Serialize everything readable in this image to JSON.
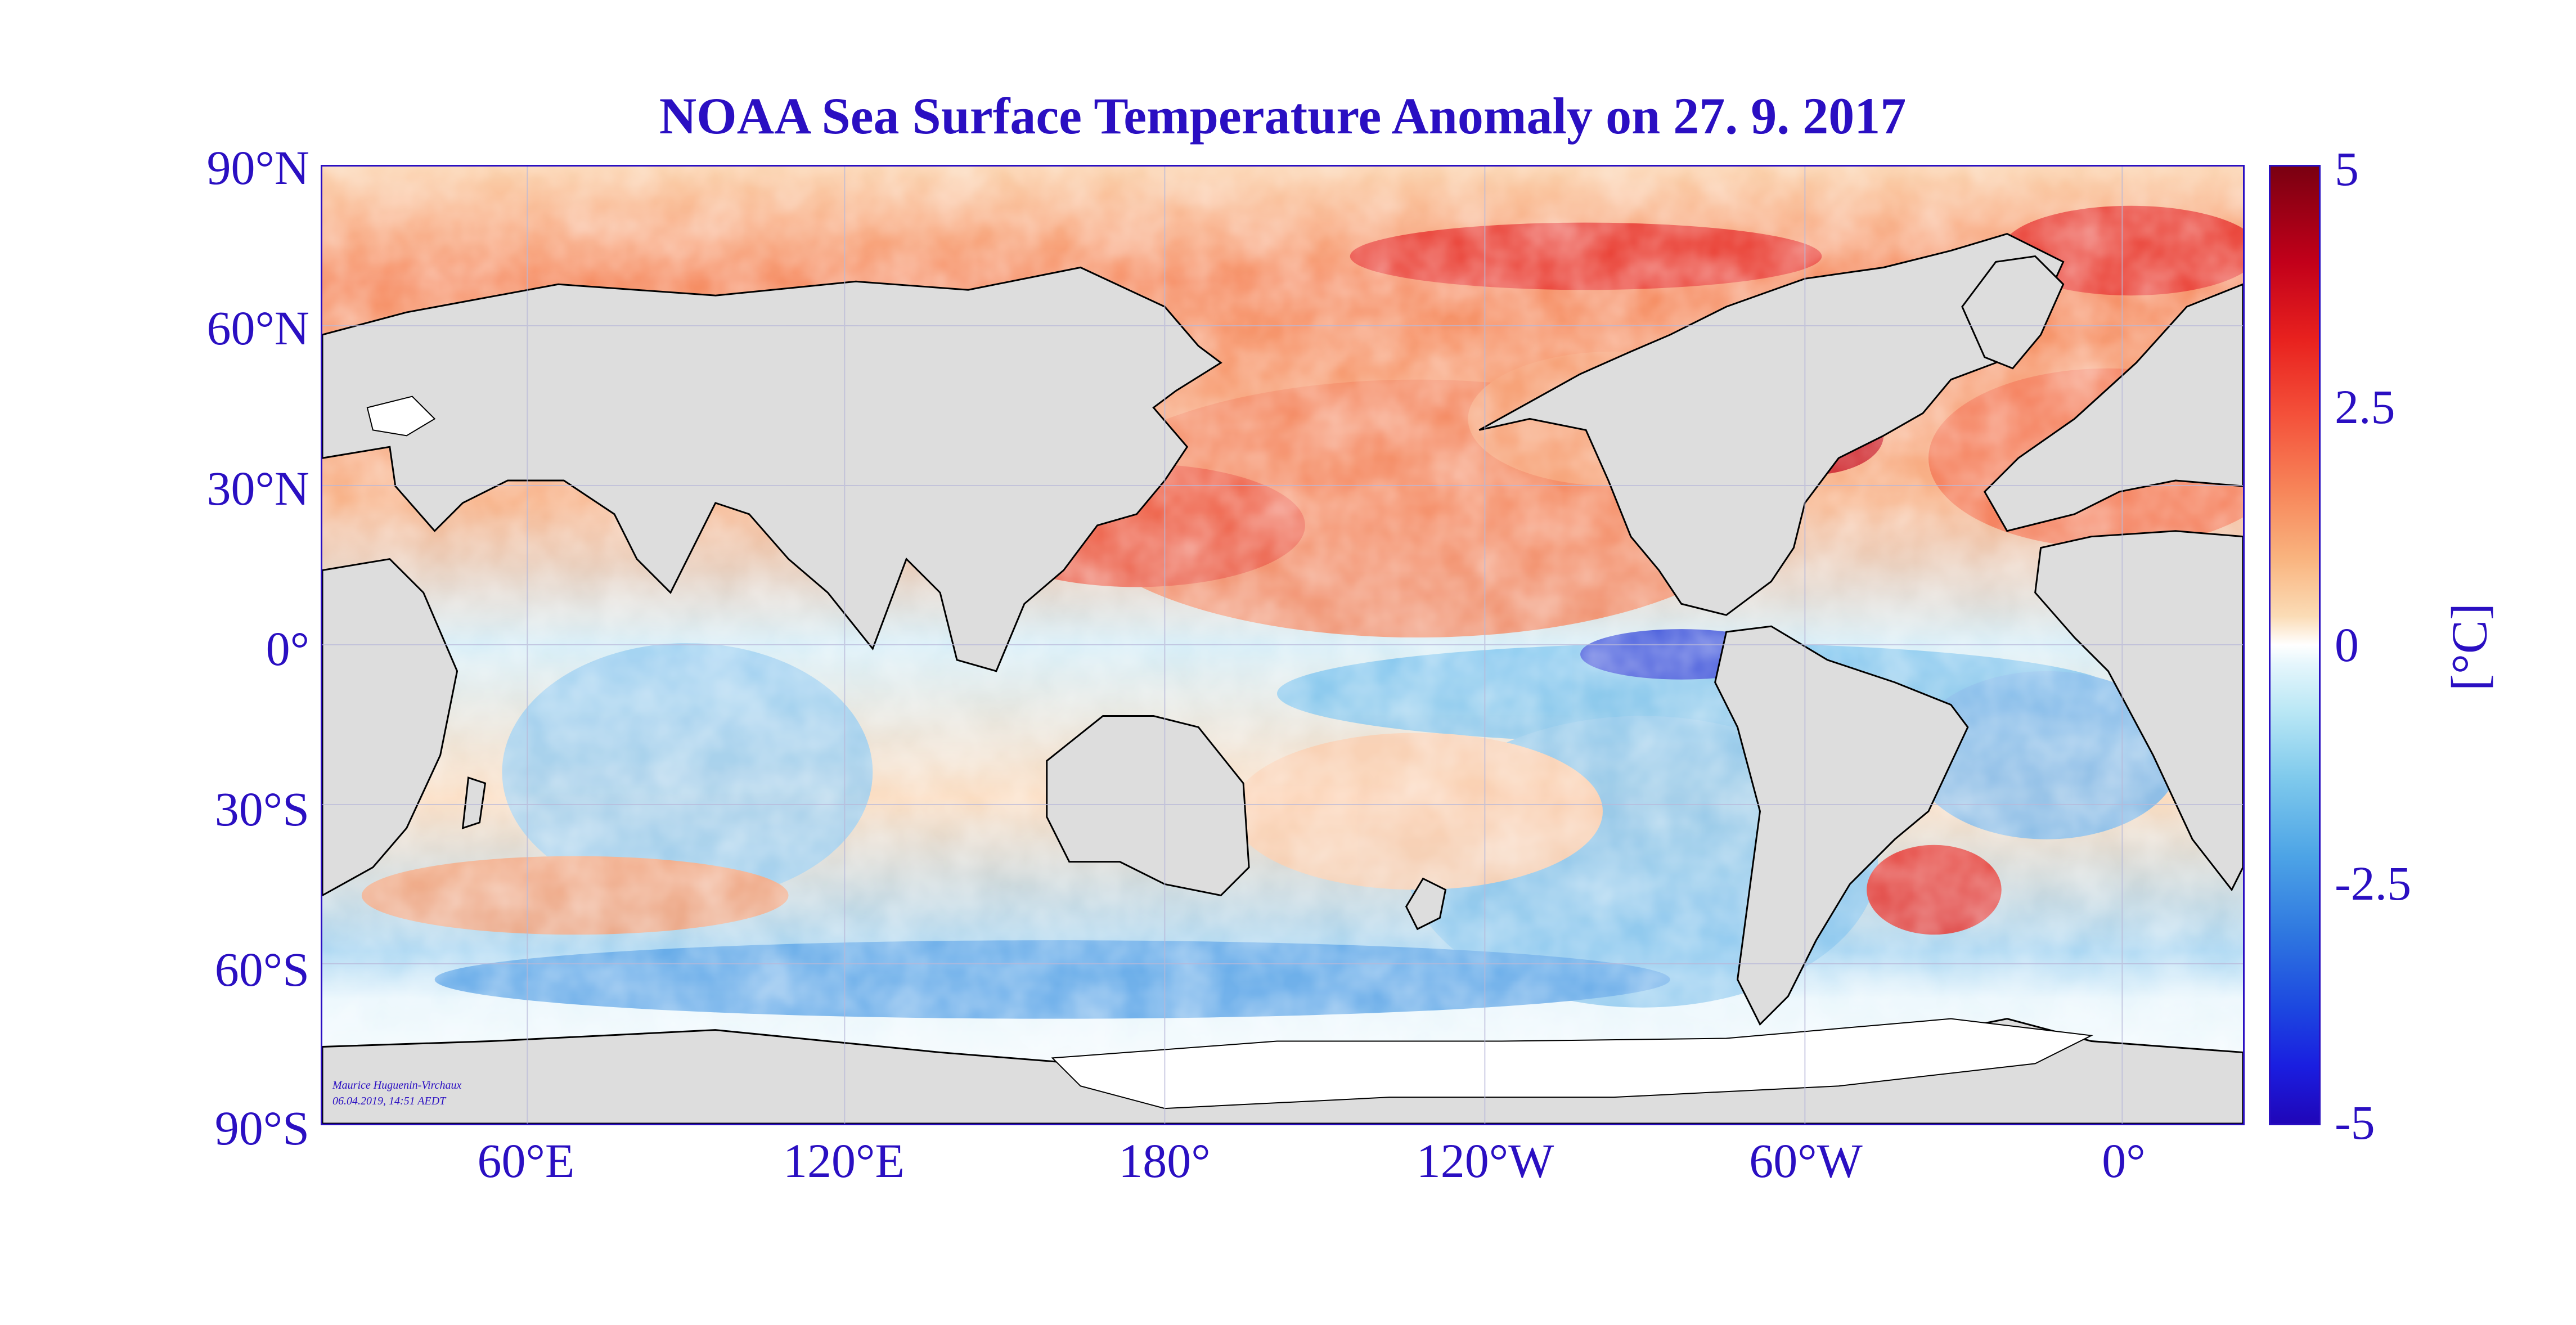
{
  "title": "NOAA Sea Surface Temperature Anomaly on 27. 9. 2017",
  "map": {
    "latitude_labels": [
      "90°N",
      "60°N",
      "30°N",
      "0°",
      "30°S",
      "60°S",
      "90°S"
    ],
    "longitude_labels": [
      "60°E",
      "120°E",
      "180°",
      "120°W",
      "60°W",
      "0°"
    ],
    "land_color": "#dddddd",
    "ice_color": "#ffffff",
    "coastline_color": "#000000",
    "grid_color": "#b8b8d8",
    "credit_author": "Maurice Huguenin-Virchaux",
    "credit_timestamp": "06.04.2019, 14:51 AEDT"
  },
  "colorbar": {
    "ticks": [
      "5",
      "2.5",
      "0",
      "-2.5",
      "-5"
    ],
    "tick_values": [
      5,
      2.5,
      0,
      -2.5,
      -5
    ],
    "range": [
      -5,
      5
    ],
    "unit": "[°C]",
    "warm_color": "#c2001a",
    "neutral_color": "#ffffff",
    "cold_color": "#1a1ee0"
  },
  "text_color": "#2a0fc2"
}
